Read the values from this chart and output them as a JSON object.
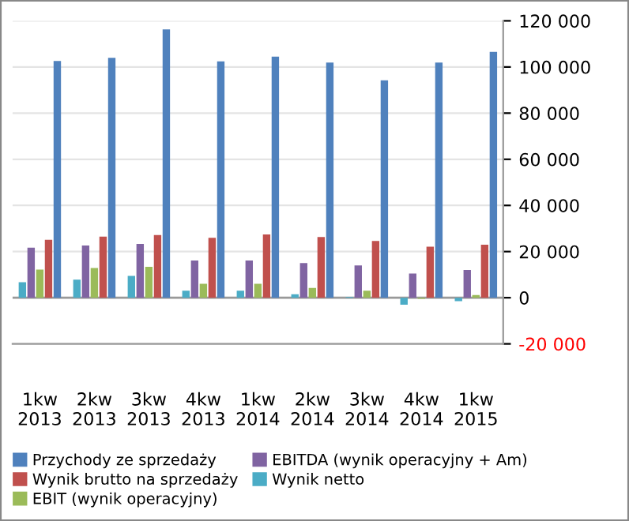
{
  "chart_data": {
    "type": "bar",
    "categories": [
      "1kw\n2013",
      "2kw\n2013",
      "3kw\n2013",
      "4kw\n2013",
      "1kw\n2014",
      "2kw\n2014",
      "3kw\n2014",
      "4kw\n2014",
      "1kw\n2015"
    ],
    "series": [
      {
        "name": "Przychody ze sprzedaży",
        "color": "#4f81bd",
        "values": [
          102600,
          104000,
          116300,
          102400,
          104500,
          101900,
          94200,
          101900,
          106500
        ]
      },
      {
        "name": "Wynik brutto na sprzedaży",
        "color": "#c0504d",
        "values": [
          25100,
          26500,
          27200,
          26000,
          27400,
          26300,
          24600,
          22100,
          23000
        ]
      },
      {
        "name": "EBIT (wynik operacyjny)",
        "color": "#9bbb59",
        "values": [
          12200,
          12900,
          13400,
          6000,
          6000,
          4200,
          3000,
          -500,
          1200
        ]
      },
      {
        "name": "EBITDA (wynik operacyjny + Am)",
        "color": "#8064a2",
        "values": [
          21700,
          22600,
          23300,
          16100,
          16100,
          15000,
          14000,
          10500,
          12000
        ]
      },
      {
        "name": "Wynik netto",
        "color": "#4bacc6",
        "values": [
          6700,
          7800,
          9500,
          3000,
          3000,
          1500,
          300,
          -3000,
          -1500
        ]
      }
    ],
    "ylim": [
      -20000,
      120000
    ],
    "yticks": [
      {
        "value": -20000,
        "label": "-20 000"
      },
      {
        "value": 0,
        "label": "0"
      },
      {
        "value": 20000,
        "label": "20 000"
      },
      {
        "value": 40000,
        "label": "40 000"
      },
      {
        "value": 60000,
        "label": "60 000"
      },
      {
        "value": 80000,
        "label": "80 000"
      },
      {
        "value": 100000,
        "label": "100 000"
      },
      {
        "value": 120000,
        "label": "120 000"
      }
    ],
    "grid": "y",
    "legend": "bottom"
  }
}
